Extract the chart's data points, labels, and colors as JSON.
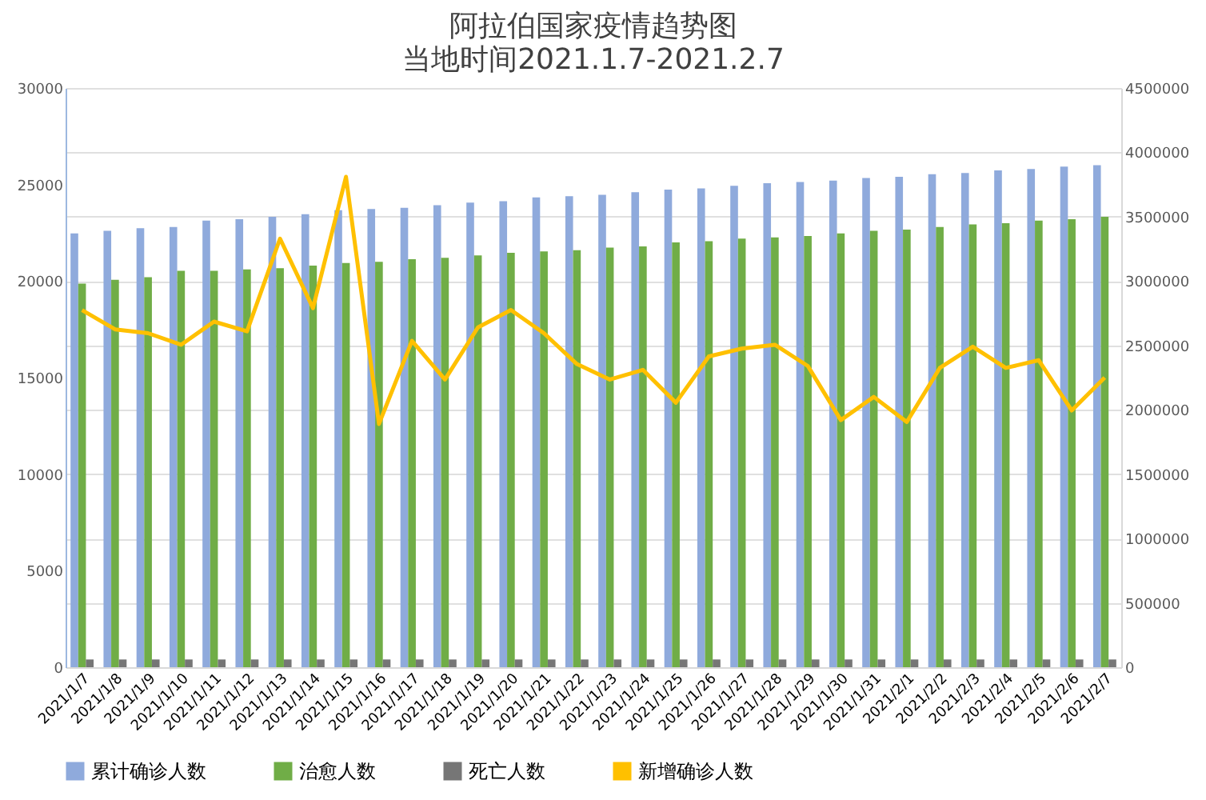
{
  "chart_data": {
    "type": "bar",
    "title": "阿拉伯国家疫情趋势图",
    "subtitle": "当地时间2021.1.7-2021.2.7",
    "categories": [
      "2021/1/7",
      "2021/1/8",
      "2021/1/9",
      "2021/1/10",
      "2021/1/11",
      "2021/1/12",
      "2021/1/13",
      "2021/1/14",
      "2021/1/15",
      "2021/1/16",
      "2021/1/17",
      "2021/1/18",
      "2021/1/19",
      "2021/1/20",
      "2021/1/21",
      "2021/1/22",
      "2021/1/23",
      "2021/1/24",
      "2021/1/25",
      "2021/1/26",
      "2021/1/27",
      "2021/1/28",
      "2021/1/29",
      "2021/1/30",
      "2021/1/31",
      "2021/2/1",
      "2021/2/2",
      "2021/2/3",
      "2021/2/4",
      "2021/2/5",
      "2021/2/6",
      "2021/2/7"
    ],
    "series": [
      {
        "name": "累计确诊人数",
        "color": "#8faadc",
        "axis": "y2",
        "values": [
          3370000,
          3390000,
          3410000,
          3420000,
          3470000,
          3480000,
          3500000,
          3520000,
          3550000,
          3560000,
          3570000,
          3590000,
          3610000,
          3620000,
          3650000,
          3660000,
          3670000,
          3690000,
          3710000,
          3720000,
          3740000,
          3760000,
          3770000,
          3780000,
          3800000,
          3810000,
          3830000,
          3840000,
          3860000,
          3870000,
          3890000,
          3900000
        ]
      },
      {
        "name": "治愈人数",
        "color": "#70ad47",
        "axis": "y2",
        "values": [
          2980000,
          3010000,
          3030000,
          3080000,
          3080000,
          3090000,
          3100000,
          3120000,
          3140000,
          3150000,
          3170000,
          3180000,
          3200000,
          3220000,
          3230000,
          3240000,
          3260000,
          3270000,
          3300000,
          3310000,
          3330000,
          3340000,
          3350000,
          3370000,
          3390000,
          3400000,
          3420000,
          3440000,
          3450000,
          3470000,
          3480000,
          3500000
        ]
      },
      {
        "name": "死亡人数",
        "color": "#767676",
        "axis": "y2",
        "values": [
          60000,
          60000,
          60000,
          60000,
          60000,
          60000,
          60000,
          60000,
          60000,
          60000,
          60000,
          60000,
          60000,
          60000,
          60000,
          60000,
          60000,
          60000,
          60000,
          60000,
          60000,
          60000,
          60000,
          60000,
          60000,
          60000,
          60000,
          60000,
          60000,
          60000,
          60000,
          60000
        ]
      },
      {
        "name": "新增确诊人数",
        "color": "#ffc000",
        "type": "line",
        "axis": "y",
        "values": [
          18500,
          17500,
          17300,
          16700,
          17900,
          17400,
          22200,
          18600,
          25400,
          12600,
          16900,
          14900,
          17600,
          18500,
          17300,
          15700,
          14900,
          15400,
          13700,
          16100,
          16500,
          16700,
          15600,
          12800,
          14000,
          12700,
          15500,
          16600,
          15500,
          15900,
          13300,
          15000
        ]
      }
    ],
    "ylim": [
      0,
      30000
    ],
    "yticks": [
      0,
      5000,
      10000,
      15000,
      20000,
      25000,
      30000
    ],
    "y2lim": [
      0,
      4500000
    ],
    "y2ticks": [
      0,
      500000,
      1000000,
      1500000,
      2000000,
      2500000,
      3000000,
      3500000,
      4000000,
      4500000
    ],
    "grid": true,
    "legend": "bottom"
  }
}
